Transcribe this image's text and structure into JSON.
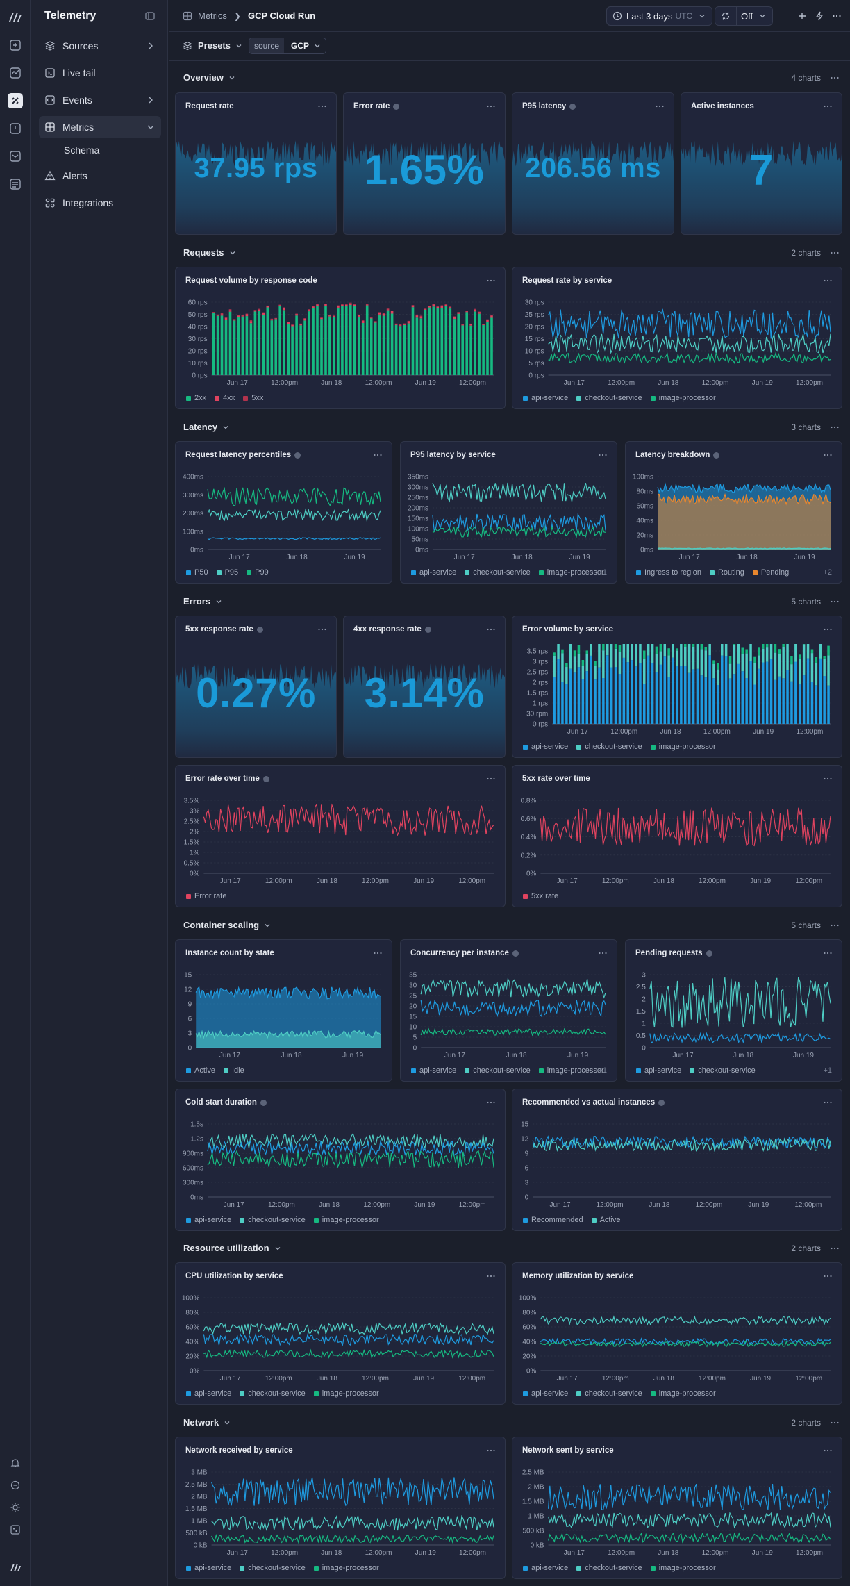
{
  "app": {
    "title": "Telemetry"
  },
  "sidebar": {
    "items": [
      {
        "label": "Sources",
        "icon": "database-icon",
        "chevron": "right"
      },
      {
        "label": "Live tail",
        "icon": "terminal-icon",
        "chevron": ""
      },
      {
        "label": "Events",
        "icon": "code-icon",
        "chevron": "right"
      },
      {
        "label": "Metrics",
        "icon": "grid-icon",
        "chevron": "down",
        "active": true
      },
      {
        "label": "Alerts",
        "icon": "alert-triangle-icon",
        "chevron": ""
      },
      {
        "label": "Integrations",
        "icon": "integrations-icon",
        "chevron": ""
      }
    ],
    "sub_item": "Schema"
  },
  "breadcrumb": {
    "parent": "Metrics",
    "current": "GCP Cloud Run"
  },
  "toolbar": {
    "time_range": "Last 3 days",
    "timezone": "UTC",
    "refresh": "Off"
  },
  "presets": {
    "label": "Presets",
    "filter_key": "source",
    "filter_value": "GCP"
  },
  "colors": {
    "blue": "#1e9be0",
    "teal": "#4ecdc4",
    "green": "#16b981",
    "red": "#e0435f",
    "orange": "#e8862e",
    "stat": "#1a9ad8",
    "stat_bg": "#1d6d99"
  },
  "sections": [
    {
      "title": "Overview",
      "count": "4 charts"
    },
    {
      "title": "Requests",
      "count": "2 charts"
    },
    {
      "title": "Latency",
      "count": "3 charts"
    },
    {
      "title": "Errors",
      "count": "5 charts"
    },
    {
      "title": "Container scaling",
      "count": "5 charts"
    },
    {
      "title": "Resource utilization",
      "count": "2 charts"
    },
    {
      "title": "Network",
      "count": "2 charts"
    }
  ],
  "stats": [
    {
      "title": "Request rate",
      "value": "37.95 rps",
      "info": false
    },
    {
      "title": "Error rate",
      "value": "1.65%",
      "info": true
    },
    {
      "title": "P95 latency",
      "value": "206.56 ms",
      "info": true
    },
    {
      "title": "Active instances",
      "value": "7",
      "info": false
    },
    {
      "title": "5xx response rate",
      "value": "0.27%",
      "info": true
    },
    {
      "title": "4xx response rate",
      "value": "3.14%",
      "info": true
    }
  ],
  "chart_data": [
    {
      "id": "req_volume",
      "title": "Request volume by response code",
      "type": "bar",
      "stacked": true,
      "x": [
        "Jun 17",
        "12:00pm",
        "Jun 18",
        "12:00pm",
        "Jun 19",
        "12:00pm"
      ],
      "yticks": [
        "60 rps",
        "50 rps",
        "40 rps",
        "30 rps",
        "20 rps",
        "10 rps",
        "0 rps"
      ],
      "ylim": [
        0,
        60
      ],
      "series": [
        {
          "name": "2xx",
          "color": "#16b981",
          "level": [
            40,
            58
          ]
        },
        {
          "name": "4xx",
          "color": "#e0435f",
          "level": [
            0.5,
            2
          ]
        },
        {
          "name": "5xx",
          "color": "#b2334d",
          "level": [
            0.2,
            0.8
          ]
        }
      ]
    },
    {
      "id": "req_rate_svc",
      "title": "Request rate by service",
      "type": "line",
      "x": [
        "Jun 17",
        "12:00pm",
        "Jun 18",
        "12:00pm",
        "Jun 19",
        "12:00pm"
      ],
      "yticks": [
        "30 rps",
        "25 rps",
        "20 rps",
        "15 rps",
        "10 rps",
        "5 rps",
        "0 rps"
      ],
      "ylim": [
        0,
        30
      ],
      "series": [
        {
          "name": "api-service",
          "color": "#1e9be0",
          "level": [
            15,
            27
          ]
        },
        {
          "name": "checkout-service",
          "color": "#4ecdc4",
          "level": [
            9,
            17
          ]
        },
        {
          "name": "image-processor",
          "color": "#16b981",
          "level": [
            5,
            9
          ]
        }
      ]
    },
    {
      "id": "lat_pct",
      "title": "Request latency percentiles",
      "type": "line",
      "info": true,
      "x": [
        "Jun 17",
        "Jun 18",
        "Jun 19"
      ],
      "yticks": [
        "400ms",
        "300ms",
        "200ms",
        "100ms",
        "0ms"
      ],
      "ylim": [
        0,
        400
      ],
      "series": [
        {
          "name": "P50",
          "color": "#1e9be0",
          "level": [
            55,
            65
          ]
        },
        {
          "name": "P95",
          "color": "#4ecdc4",
          "level": [
            160,
            220
          ]
        },
        {
          "name": "P99",
          "color": "#16b981",
          "level": [
            240,
            340
          ]
        }
      ]
    },
    {
      "id": "p95_svc",
      "title": "P95 latency by service",
      "type": "line",
      "x": [
        "Jun 17",
        "Jun 18",
        "Jun 19"
      ],
      "yticks": [
        "350ms",
        "300ms",
        "250ms",
        "200ms",
        "150ms",
        "100ms",
        "50ms",
        "0ms"
      ],
      "ylim": [
        0,
        350
      ],
      "series": [
        {
          "name": "api-service",
          "color": "#1e9be0",
          "level": [
            90,
            170
          ]
        },
        {
          "name": "checkout-service",
          "color": "#4ecdc4",
          "level": [
            230,
            320
          ]
        },
        {
          "name": "image-processor",
          "color": "#16b981",
          "level": [
            60,
            110
          ]
        }
      ],
      "more": "+1"
    },
    {
      "id": "lat_breakdown",
      "title": "Latency breakdown",
      "type": "area",
      "info": true,
      "x": [
        "Jun 17",
        "Jun 18",
        "Jun 19"
      ],
      "yticks": [
        "100ms",
        "80ms",
        "60ms",
        "40ms",
        "20ms",
        "0ms"
      ],
      "ylim": [
        0,
        100
      ],
      "series": [
        {
          "name": "Ingress to region",
          "color": "#1e9be0",
          "level": [
            78,
            90
          ]
        },
        {
          "name": "Routing",
          "color": "#4ecdc4",
          "level": [
            1,
            2
          ]
        },
        {
          "name": "Pending",
          "color": "#e8862e",
          "level": [
            62,
            76
          ]
        }
      ],
      "more": "+2"
    },
    {
      "id": "err_vol_svc",
      "title": "Error volume by service",
      "type": "bar",
      "stacked": true,
      "x": [
        "Jun 17",
        "12:00pm",
        "Jun 18",
        "12:00pm",
        "Jun 19",
        "12:00pm"
      ],
      "yticks": [
        "3.5 rps",
        "3 rps",
        "2.5 rps",
        "2 rps",
        "1.5 rps",
        "1 rps",
        "30 rpm",
        "0 rps"
      ],
      "ylim": [
        0,
        3.5
      ],
      "series": [
        {
          "name": "api-service",
          "color": "#1e9be0",
          "level": [
            1.8,
            3.3
          ]
        },
        {
          "name": "checkout-service",
          "color": "#4ecdc4",
          "level": [
            0.6,
            1.5
          ]
        },
        {
          "name": "image-processor",
          "color": "#16b981",
          "level": [
            0.1,
            0.5
          ]
        }
      ]
    },
    {
      "id": "err_rate_time",
      "title": "Error rate over time",
      "type": "line",
      "info": true,
      "x": [
        "Jun 17",
        "12:00pm",
        "Jun 18",
        "12:00pm",
        "Jun 19",
        "12:00pm"
      ],
      "yticks": [
        "3.5%",
        "3%",
        "2.5%",
        "2%",
        "1.5%",
        "1%",
        "0.5%",
        "0%"
      ],
      "ylim": [
        0,
        3.5
      ],
      "series": [
        {
          "name": "Error rate",
          "color": "#e0435f",
          "level": [
            1.8,
            3.3
          ]
        }
      ]
    },
    {
      "id": "5xx_rate_time",
      "title": "5xx rate over time",
      "type": "line",
      "x": [
        "Jun 17",
        "12:00pm",
        "Jun 18",
        "12:00pm",
        "Jun 19",
        "12:00pm"
      ],
      "yticks": [
        "0.8%",
        "0.6%",
        "0.4%",
        "0.2%",
        "0%"
      ],
      "ylim": [
        0,
        0.8
      ],
      "series": [
        {
          "name": "5xx rate",
          "color": "#e0435f",
          "level": [
            0.3,
            0.72
          ]
        }
      ]
    },
    {
      "id": "inst_state",
      "title": "Instance count by state",
      "type": "area",
      "x": [
        "Jun 17",
        "Jun 18",
        "Jun 19"
      ],
      "yticks": [
        "15",
        "12",
        "9",
        "6",
        "3",
        "0"
      ],
      "ylim": [
        0,
        15
      ],
      "series": [
        {
          "name": "Active",
          "color": "#1e9be0",
          "level": [
            10,
            12.5
          ]
        },
        {
          "name": "Idle",
          "color": "#4ecdc4",
          "level": [
            2,
            3.5
          ]
        }
      ]
    },
    {
      "id": "concurrency",
      "title": "Concurrency per instance",
      "type": "line",
      "info": true,
      "x": [
        "Jun 17",
        "Jun 18",
        "Jun 19"
      ],
      "yticks": [
        "35",
        "30",
        "25",
        "20",
        "15",
        "10",
        "5",
        "0"
      ],
      "ylim": [
        0,
        35
      ],
      "series": [
        {
          "name": "api-service",
          "color": "#1e9be0",
          "level": [
            15,
            23
          ]
        },
        {
          "name": "checkout-service",
          "color": "#4ecdc4",
          "level": [
            24,
            33
          ]
        },
        {
          "name": "image-processor",
          "color": "#16b981",
          "level": [
            6,
            9
          ]
        }
      ],
      "more": "+1"
    },
    {
      "id": "pending_req",
      "title": "Pending requests",
      "type": "line",
      "info": true,
      "x": [
        "Jun 17",
        "Jun 18",
        "Jun 19"
      ],
      "yticks": [
        "3",
        "2.5",
        "2",
        "1.5",
        "1",
        "0.5",
        "0"
      ],
      "ylim": [
        0,
        3
      ],
      "series": [
        {
          "name": "api-service",
          "color": "#1e9be0",
          "level": [
            0.2,
            0.6
          ]
        },
        {
          "name": "checkout-service",
          "color": "#4ecdc4",
          "level": [
            0.8,
            2.9
          ]
        }
      ],
      "more": "+1"
    },
    {
      "id": "cold_start",
      "title": "Cold start duration",
      "type": "line",
      "info": true,
      "x": [
        "Jun 17",
        "12:00pm",
        "Jun 18",
        "12:00pm",
        "Jun 19",
        "12:00pm"
      ],
      "yticks": [
        "1.5s",
        "1.2s",
        "900ms",
        "600ms",
        "300ms",
        "0ms"
      ],
      "ylim": [
        0,
        1.5
      ],
      "series": [
        {
          "name": "api-service",
          "color": "#1e9be0",
          "level": [
            0.85,
            1.15
          ]
        },
        {
          "name": "checkout-service",
          "color": "#4ecdc4",
          "level": [
            1.0,
            1.3
          ]
        },
        {
          "name": "image-processor",
          "color": "#16b981",
          "level": [
            0.6,
            0.95
          ]
        }
      ]
    },
    {
      "id": "rec_vs_actual",
      "title": "Recommended vs actual instances",
      "type": "line",
      "info": true,
      "x": [
        "Jun 17",
        "12:00pm",
        "Jun 18",
        "12:00pm",
        "Jun 19",
        "12:00pm"
      ],
      "yticks": [
        "15",
        "12",
        "9",
        "6",
        "3",
        "0"
      ],
      "ylim": [
        0,
        15
      ],
      "series": [
        {
          "name": "Recommended",
          "color": "#1e9be0",
          "level": [
            10,
            12.5
          ]
        },
        {
          "name": "Active",
          "color": "#4ecdc4",
          "level": [
            9.5,
            12
          ]
        }
      ]
    },
    {
      "id": "cpu_util",
      "title": "CPU utilization by service",
      "type": "line",
      "x": [
        "Jun 17",
        "12:00pm",
        "Jun 18",
        "12:00pm",
        "Jun 19",
        "12:00pm"
      ],
      "yticks": [
        "100%",
        "80%",
        "60%",
        "40%",
        "20%",
        "0%"
      ],
      "ylim": [
        0,
        100
      ],
      "series": [
        {
          "name": "api-service",
          "color": "#1e9be0",
          "level": [
            35,
            50
          ]
        },
        {
          "name": "checkout-service",
          "color": "#4ecdc4",
          "level": [
            50,
            65
          ]
        },
        {
          "name": "image-processor",
          "color": "#16b981",
          "level": [
            18,
            28
          ]
        }
      ]
    },
    {
      "id": "mem_util",
      "title": "Memory utilization by service",
      "type": "line",
      "x": [
        "Jun 17",
        "12:00pm",
        "Jun 18",
        "12:00pm",
        "Jun 19",
        "12:00pm"
      ],
      "yticks": [
        "100%",
        "80%",
        "60%",
        "40%",
        "20%",
        "0%"
      ],
      "ylim": [
        0,
        100
      ],
      "series": [
        {
          "name": "api-service",
          "color": "#1e9be0",
          "level": [
            36,
            44
          ]
        },
        {
          "name": "checkout-service",
          "color": "#4ecdc4",
          "level": [
            63,
            74
          ]
        },
        {
          "name": "image-processor",
          "color": "#16b981",
          "level": [
            33,
            40
          ]
        }
      ]
    },
    {
      "id": "net_recv",
      "title": "Network received by service",
      "type": "line",
      "x": [
        "Jun 17",
        "12:00pm",
        "Jun 18",
        "12:00pm",
        "Jun 19",
        "12:00pm"
      ],
      "yticks": [
        "3 MB",
        "2.5 MB",
        "2 MB",
        "1.5 MB",
        "1 MB",
        "500 kB",
        "0 kB"
      ],
      "ylim": [
        0,
        3
      ],
      "series": [
        {
          "name": "api-service",
          "color": "#1e9be0",
          "level": [
            1.6,
            2.8
          ]
        },
        {
          "name": "checkout-service",
          "color": "#4ecdc4",
          "level": [
            0.6,
            1.2
          ]
        },
        {
          "name": "image-processor",
          "color": "#16b981",
          "level": [
            0.1,
            0.4
          ]
        }
      ]
    },
    {
      "id": "net_sent",
      "title": "Network sent by service",
      "type": "line",
      "x": [
        "Jun 17",
        "12:00pm",
        "Jun 18",
        "12:00pm",
        "Jun 19",
        "12:00pm"
      ],
      "yticks": [
        "2.5 MB",
        "2 MB",
        "1.5 MB",
        "1 MB",
        "500 kB",
        "0 kB"
      ],
      "ylim": [
        0,
        2.5
      ],
      "series": [
        {
          "name": "api-service",
          "color": "#1e9be0",
          "level": [
            1.2,
            2.1
          ]
        },
        {
          "name": "checkout-service",
          "color": "#4ecdc4",
          "level": [
            0.6,
            1.1
          ]
        },
        {
          "name": "image-processor",
          "color": "#16b981",
          "level": [
            0.1,
            0.4
          ]
        }
      ]
    }
  ]
}
